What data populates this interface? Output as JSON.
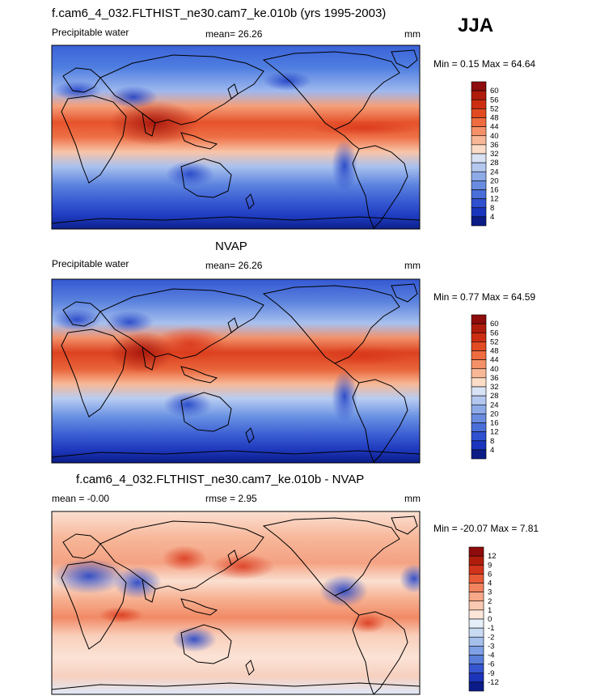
{
  "season": "JJA",
  "colors": {
    "ocean_warm": "#e8542e",
    "ocean_cool": "#2f5bd6",
    "deep_blue": "#1a2a9c",
    "land_line": "#000000"
  },
  "chart_data": [
    {
      "type": "heatmap",
      "title": "f.cam6_4_032.FLTHIST_ne30.cam7_ke.010b (yrs 1995-2003)",
      "left_label": "Precipitable water",
      "mean_text": "mean=  26.26",
      "units": "mm",
      "minmax_text": "Min =   0.15 Max =  64.64",
      "colorbar": {
        "levels": [
          "60",
          "56",
          "52",
          "48",
          "44",
          "40",
          "36",
          "32",
          "28",
          "24",
          "20",
          "16",
          "12",
          "8",
          "4"
        ],
        "colors": [
          "#8e0c0c",
          "#b01c0c",
          "#cd2e12",
          "#e24a22",
          "#ee6c3f",
          "#f49168",
          "#f8b897",
          "#fbdcc7",
          "#d8e2f5",
          "#b4c8ef",
          "#8eabe8",
          "#6a8ce0",
          "#4a6ed8",
          "#2f50cf",
          "#1a35bd",
          "#0b1c86"
        ]
      }
    },
    {
      "type": "heatmap",
      "title": "NVAP",
      "left_label": "Precipitable water",
      "mean_text": "mean=  26.26",
      "units": "mm",
      "minmax_text": "Min =   0.77 Max =  64.59",
      "colorbar": {
        "levels": [
          "60",
          "56",
          "52",
          "48",
          "44",
          "40",
          "36",
          "32",
          "28",
          "24",
          "20",
          "16",
          "12",
          "8",
          "4"
        ],
        "colors": [
          "#8e0c0c",
          "#b01c0c",
          "#cd2e12",
          "#e24a22",
          "#ee6c3f",
          "#f49168",
          "#f8b897",
          "#fbdcc7",
          "#d8e2f5",
          "#b4c8ef",
          "#8eabe8",
          "#6a8ce0",
          "#4a6ed8",
          "#2f50cf",
          "#1a35bd",
          "#0b1c86"
        ]
      }
    },
    {
      "type": "heatmap",
      "title": "f.cam6_4_032.FLTHIST_ne30.cam7_ke.010b - NVAP",
      "left_label": "mean =  -0.00",
      "mean_text": "rmse =   2.95",
      "units": "mm",
      "minmax_text": "Min = -20.07 Max =   7.81",
      "colorbar": {
        "levels": [
          "12",
          "9",
          "6",
          "4",
          "3",
          "2",
          "1",
          "0",
          "-1",
          "-2",
          "-3",
          "-4",
          "-6",
          "-9",
          "-12"
        ],
        "colors": [
          "#8e0c0c",
          "#b01c0c",
          "#d0341a",
          "#e85a36",
          "#f2835f",
          "#f6a888",
          "#f9c9b2",
          "#fce6da",
          "#e6eef9",
          "#c9daf3",
          "#a6c0ec",
          "#7fa0e4",
          "#5a7fdb",
          "#3656d0",
          "#1b34b8",
          "#0b1c86"
        ]
      }
    }
  ]
}
